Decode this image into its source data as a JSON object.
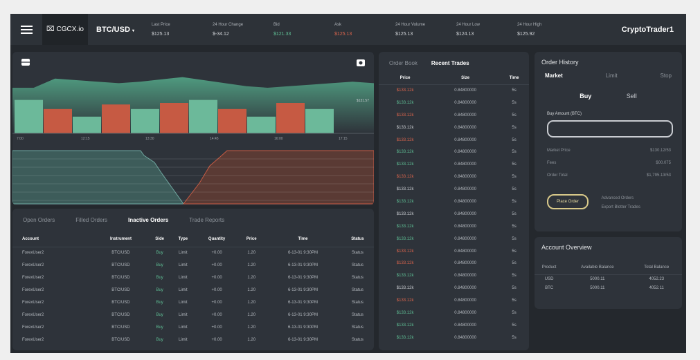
{
  "header": {
    "brand": "CGCX.io",
    "pair": "BTC/USD",
    "user": "CryptoTrader1",
    "stats": [
      {
        "label": "Last Price",
        "value": "$125.13",
        "color": "#d0d3d7"
      },
      {
        "label": "24 Hour Change",
        "value": "$-34.12",
        "color": "#d0d3d7"
      },
      {
        "label": "Bid",
        "value": "$121.33",
        "color": "#5fbf95"
      },
      {
        "label": "Ask",
        "value": "$125.13",
        "color": "#d9644c"
      },
      {
        "label": "24 Hour Volume",
        "value": "$125.13",
        "color": "#d0d3d7"
      },
      {
        "label": "24 Hour Low",
        "value": "$124.13",
        "color": "#d0d3d7"
      },
      {
        "label": "24 Hour High",
        "value": "$125.92",
        "color": "#d0d3d7"
      }
    ]
  },
  "chart": {
    "price_label": "$131.57",
    "x_ticks": [
      "7:00",
      "12:15",
      "13:30",
      "14:45",
      "16:00",
      "17:15"
    ],
    "area": [
      60,
      60,
      72,
      70,
      68,
      66,
      68,
      71,
      74,
      70,
      66,
      62,
      60,
      62,
      64,
      66,
      68,
      66
    ],
    "bars": [
      {
        "v": 44,
        "side": "buy"
      },
      {
        "v": 32,
        "side": "sell"
      },
      {
        "v": 22,
        "side": "buy"
      },
      {
        "v": 38,
        "side": "sell"
      },
      {
        "v": 32,
        "side": "buy"
      },
      {
        "v": 40,
        "side": "sell"
      },
      {
        "v": 44,
        "side": "buy"
      },
      {
        "v": 32,
        "side": "sell"
      },
      {
        "v": 22,
        "side": "buy"
      },
      {
        "v": 40,
        "side": "sell"
      },
      {
        "v": 32,
        "side": "buy"
      }
    ]
  },
  "orders": {
    "tabs": [
      "Open Orders",
      "Filled Orders",
      "Inactive Orders",
      "Trade Reports"
    ],
    "active_tab": 2,
    "columns": [
      "Account",
      "Instrument",
      "Side",
      "Type",
      "Quantity",
      "Price",
      "Time",
      "Status"
    ],
    "rows": [
      [
        "ForexUser2",
        "BTC/USD",
        "Buy",
        "Limit",
        "+0.00",
        "1.20",
        "6-13-01 9:30PM",
        "Status"
      ],
      [
        "ForexUser2",
        "BTC/USD",
        "Buy",
        "Limit",
        "+0.00",
        "1.20",
        "6-13-01 9:30PM",
        "Status"
      ],
      [
        "ForexUser2",
        "BTC/USD",
        "Buy",
        "Limit",
        "+0.00",
        "1.20",
        "6-13-01 9:30PM",
        "Status"
      ],
      [
        "ForexUser2",
        "BTC/USD",
        "Buy",
        "Limit",
        "+0.00",
        "1.20",
        "6-13-01 9:30PM",
        "Status"
      ],
      [
        "ForexUser2",
        "BTC/USD",
        "Buy",
        "Limit",
        "+0.00",
        "1.20",
        "6-13-01 9:30PM",
        "Status"
      ],
      [
        "ForexUser2",
        "BTC/USD",
        "Buy",
        "Limit",
        "+0.00",
        "1.20",
        "6-13-01 9:30PM",
        "Status"
      ],
      [
        "ForexUser2",
        "BTC/USD",
        "Buy",
        "Limit",
        "+0.00",
        "1.20",
        "6-13-01 9:30PM",
        "Status"
      ],
      [
        "ForexUser2",
        "BTC/USD",
        "Buy",
        "Limit",
        "+0.00",
        "1.20",
        "6-13-01 9:30PM",
        "Status"
      ]
    ]
  },
  "book": {
    "tabs": [
      "Order Book",
      "Recent Trades"
    ],
    "active_tab": 1,
    "columns": [
      "Price",
      "Size",
      "Time"
    ],
    "rows": [
      [
        "$133.12k",
        "0.84800000",
        "5s",
        "r"
      ],
      [
        "$133.12k",
        "0.84800000",
        "5s",
        "g"
      ],
      [
        "$133.12k",
        "0.84800000",
        "5s",
        "r"
      ],
      [
        "$133.12k",
        "0.84800000",
        "5s",
        "w"
      ],
      [
        "$133.12k",
        "0.84800000",
        "5s",
        "r"
      ],
      [
        "$133.12k",
        "0.84800000",
        "5s",
        "g"
      ],
      [
        "$133.12k",
        "0.84800000",
        "5s",
        "g"
      ],
      [
        "$133.12k",
        "0.84800000",
        "5s",
        "r"
      ],
      [
        "$133.12k",
        "0.84800000",
        "5s",
        "w"
      ],
      [
        "$133.12k",
        "0.84800000",
        "5s",
        "g"
      ],
      [
        "$133.12k",
        "0.84800000",
        "5s",
        "w"
      ],
      [
        "$133.12k",
        "0.84800000",
        "5s",
        "g"
      ],
      [
        "$133.12k",
        "0.84800000",
        "5s",
        "g"
      ],
      [
        "$133.12k",
        "0.84800000",
        "5s",
        "r"
      ],
      [
        "$133.12k",
        "0.84800000",
        "5s",
        "r"
      ],
      [
        "$133.12k",
        "0.84800000",
        "5s",
        "g"
      ],
      [
        "$133.12k",
        "0.84800000",
        "5s",
        "w"
      ],
      [
        "$133.12k",
        "0.84800000",
        "5s",
        "r"
      ],
      [
        "$133.12k",
        "0.84800000",
        "5s",
        "g"
      ],
      [
        "$133.12k",
        "0.84800000",
        "5s",
        "g"
      ],
      [
        "$133.12k",
        "0.84800000",
        "5s",
        "g"
      ]
    ]
  },
  "form": {
    "title": "Order History",
    "types": [
      "Market",
      "Limit",
      "Stop"
    ],
    "sides": [
      "Buy",
      "Sell"
    ],
    "amount_label": "Buy Amount (BTC)",
    "amount_value": "",
    "market_price_label": "Market Price",
    "market_price": "$130.12/53",
    "fees_label": "Fees",
    "fees": "$00.075",
    "total_label": "Order Total",
    "total": "$1,795.13/53",
    "place": "Place Order",
    "advanced": "Advanced Orders",
    "export": "Export Blotter Trades"
  },
  "account": {
    "title": "Account Overview",
    "columns": [
      "Product",
      "Available Balance",
      "Total Balance"
    ],
    "rows": [
      [
        "USD",
        "5000.11",
        "4052.23"
      ],
      [
        "BTC",
        "5000.11",
        "4052.11"
      ]
    ]
  }
}
